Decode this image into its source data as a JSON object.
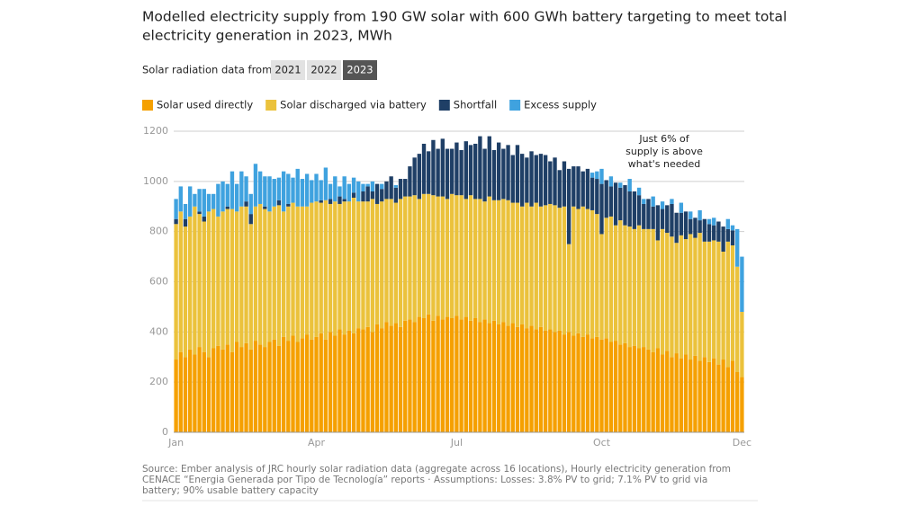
{
  "chart_data": {
    "type": "stacked_bar",
    "title": [
      "Modelled electricity supply from 190 GW solar with 600 GWh battery targeting to meet total",
      "electricity generation in 2023, MWh"
    ],
    "controls": {
      "label": "Solar radiation data from:",
      "options": [
        "2021",
        "2022",
        "2023"
      ],
      "selected": 2
    },
    "categories": [
      "Jan",
      null,
      null,
      null,
      null,
      null,
      null,
      null,
      null,
      null,
      null,
      null,
      null,
      null,
      null,
      null,
      null,
      null,
      null,
      null,
      null,
      null,
      null,
      null,
      null,
      null,
      null,
      null,
      null,
      null,
      "Apr",
      null,
      null,
      null,
      null,
      null,
      null,
      null,
      null,
      null,
      null,
      null,
      null,
      null,
      null,
      null,
      null,
      null,
      null,
      null,
      null,
      null,
      null,
      null,
      null,
      null,
      null,
      null,
      null,
      null,
      "Jul",
      null,
      null,
      null,
      null,
      null,
      null,
      null,
      null,
      null,
      null,
      null,
      null,
      null,
      null,
      null,
      null,
      null,
      null,
      null,
      null,
      null,
      null,
      null,
      null,
      null,
      null,
      null,
      null,
      null,
      null,
      "Oct",
      null,
      null,
      null,
      null,
      null,
      null,
      null,
      null,
      null,
      null,
      null,
      null,
      null,
      null,
      null,
      null,
      null,
      null,
      null,
      null,
      null,
      null,
      null,
      null,
      null,
      null,
      null,
      null,
      null,
      "Dec"
    ],
    "series": [
      {
        "name": "Solar used directly",
        "color": "#f5a000",
        "values": [
          290,
          320,
          300,
          330,
          310,
          340,
          320,
          300,
          335,
          345,
          330,
          350,
          320,
          360,
          340,
          355,
          330,
          365,
          350,
          340,
          360,
          370,
          345,
          380,
          365,
          385,
          360,
          375,
          390,
          370,
          380,
          395,
          370,
          400,
          385,
          410,
          390,
          405,
          395,
          415,
          410,
          420,
          400,
          430,
          415,
          440,
          425,
          435,
          420,
          445,
          450,
          440,
          460,
          455,
          470,
          445,
          465,
          450,
          460,
          455,
          465,
          450,
          460,
          445,
          455,
          440,
          450,
          435,
          445,
          430,
          440,
          425,
          435,
          420,
          430,
          415,
          425,
          410,
          420,
          405,
          410,
          400,
          405,
          390,
          400,
          385,
          395,
          380,
          390,
          375,
          380,
          370,
          375,
          360,
          365,
          350,
          355,
          340,
          345,
          335,
          340,
          330,
          320,
          335,
          310,
          325,
          300,
          315,
          295,
          310,
          290,
          305,
          285,
          300,
          280,
          295,
          270,
          290,
          260,
          285,
          240,
          220
        ]
      },
      {
        "name": "Solar discharged via battery",
        "color": "#ebc23c",
        "values": [
          540,
          560,
          520,
          530,
          590,
          530,
          520,
          580,
          555,
          515,
          550,
          540,
          570,
          520,
          560,
          545,
          500,
          535,
          560,
          550,
          520,
          530,
          560,
          500,
          535,
          530,
          540,
          525,
          510,
          545,
          540,
          520,
          555,
          510,
          535,
          500,
          530,
          515,
          540,
          505,
          510,
          500,
          530,
          480,
          505,
          490,
          505,
          480,
          510,
          495,
          490,
          505,
          470,
          495,
          480,
          500,
          475,
          490,
          470,
          495,
          480,
          495,
          470,
          500,
          475,
          490,
          470,
          505,
          480,
          495,
          490,
          500,
          480,
          495,
          470,
          500,
          475,
          505,
          480,
          500,
          500,
          505,
          490,
          510,
          350,
          515,
          495,
          520,
          500,
          510,
          490,
          420,
          480,
          500,
          460,
          495,
          470,
          480,
          465,
          490,
          470,
          480,
          490,
          430,
          500,
          470,
          480,
          440,
          490,
          460,
          500,
          470,
          510,
          460,
          480,
          470,
          490,
          430,
          500,
          460,
          420,
          260
        ]
      },
      {
        "name": "Shortfall",
        "color": "#1f3f66",
        "values": [
          20,
          0,
          30,
          0,
          0,
          10,
          20,
          0,
          0,
          0,
          0,
          10,
          0,
          0,
          0,
          20,
          40,
          0,
          0,
          10,
          0,
          0,
          20,
          0,
          10,
          0,
          0,
          0,
          0,
          0,
          0,
          10,
          0,
          20,
          0,
          30,
          10,
          0,
          20,
          0,
          40,
          60,
          30,
          80,
          50,
          70,
          90,
          60,
          80,
          70,
          120,
          150,
          180,
          200,
          170,
          220,
          190,
          230,
          200,
          180,
          210,
          180,
          230,
          200,
          220,
          250,
          210,
          240,
          200,
          230,
          200,
          220,
          190,
          230,
          210,
          180,
          220,
          190,
          210,
          200,
          170,
          190,
          150,
          180,
          300,
          160,
          170,
          140,
          160,
          130,
          140,
          200,
          150,
          120,
          170,
          130,
          160,
          140,
          150,
          120,
          100,
          120,
          90,
          140,
          80,
          110,
          130,
          120,
          90,
          110,
          60,
          80,
          50,
          90,
          70,
          60,
          80,
          100,
          50,
          60,
          0,
          0
        ]
      },
      {
        "name": "Excess supply",
        "color": "#3fa2df",
        "values": [
          80,
          100,
          60,
          120,
          50,
          90,
          110,
          70,
          60,
          130,
          120,
          90,
          150,
          110,
          140,
          100,
          80,
          170,
          130,
          120,
          140,
          110,
          90,
          160,
          120,
          100,
          150,
          110,
          130,
          90,
          110,
          80,
          130,
          60,
          100,
          40,
          90,
          70,
          60,
          80,
          30,
          10,
          40,
          0,
          20,
          0,
          0,
          10,
          0,
          0,
          0,
          0,
          0,
          0,
          0,
          0,
          0,
          0,
          0,
          0,
          0,
          0,
          0,
          0,
          0,
          0,
          0,
          0,
          0,
          0,
          0,
          0,
          0,
          0,
          0,
          0,
          0,
          0,
          0,
          0,
          0,
          0,
          0,
          0,
          0,
          0,
          0,
          0,
          0,
          20,
          30,
          60,
          0,
          40,
          0,
          20,
          0,
          50,
          0,
          30,
          20,
          0,
          40,
          0,
          30,
          0,
          20,
          0,
          40,
          0,
          30,
          0,
          40,
          0,
          20,
          30,
          0,
          0,
          40,
          20,
          150,
          220
        ]
      }
    ],
    "ylim": [
      0,
      1200
    ],
    "yticks": [
      0,
      200,
      400,
      600,
      800,
      1000,
      1200
    ],
    "grid": true,
    "annotation": [
      "Just 6% of",
      "supply is above",
      "what's needed"
    ],
    "source": [
      "Source: Ember analysis of JRC hourly solar radiation data (aggregate across 16 locations), Hourly electricity generation from",
      "CENACE “Energia Generada por Tipo de Tecnología” reports · Assumptions: Losses: 3.8% PV to grid; 7.1% PV to grid via",
      "battery; 90% usable battery capacity"
    ]
  }
}
